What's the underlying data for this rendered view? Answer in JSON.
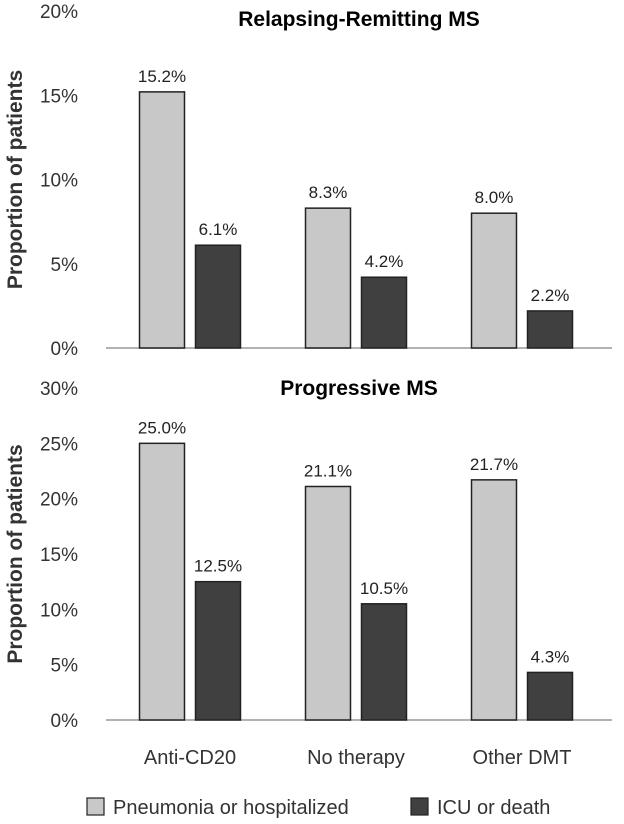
{
  "colors": {
    "series_light": "#c8c8c8",
    "series_dark": "#404040",
    "bar_stroke": "#222222",
    "axis": "#999999"
  },
  "chart_data": [
    {
      "type": "bar",
      "title": "Relapsing-Remitting MS",
      "ylabel": "Proportion of patients",
      "ylim": [
        0,
        20
      ],
      "yticks": [
        "0%",
        "5%",
        "10%",
        "15%",
        "20%"
      ],
      "categories": [
        "Anti-CD20",
        "No therapy",
        "Other DMT"
      ],
      "series": [
        {
          "name": "Pneumonia or hospitalized",
          "values": [
            15.2,
            8.3,
            8.0
          ],
          "labels": [
            "15.2%",
            "8.3%",
            "8.0%"
          ]
        },
        {
          "name": "ICU or death",
          "values": [
            6.1,
            4.2,
            2.2
          ],
          "labels": [
            "6.1%",
            "4.2%",
            "2.2%"
          ]
        }
      ]
    },
    {
      "type": "bar",
      "title": "Progressive MS",
      "ylabel": "Proportion of patients",
      "ylim": [
        0,
        30
      ],
      "yticks": [
        "0%",
        "5%",
        "10%",
        "15%",
        "20%",
        "25%",
        "30%"
      ],
      "categories": [
        "Anti-CD20",
        "No therapy",
        "Other DMT"
      ],
      "series": [
        {
          "name": "Pneumonia or hospitalized",
          "values": [
            25.0,
            21.1,
            21.7
          ],
          "labels": [
            "25.0%",
            "21.1%",
            "21.7%"
          ]
        },
        {
          "name": "ICU or death",
          "values": [
            12.5,
            10.5,
            4.3
          ],
          "labels": [
            "12.5%",
            "10.5%",
            "4.3%"
          ]
        }
      ]
    }
  ],
  "legend": {
    "items": [
      {
        "label": "Pneumonia or hospitalized",
        "color": "#c8c8c8"
      },
      {
        "label": "ICU or death",
        "color": "#404040"
      }
    ]
  }
}
